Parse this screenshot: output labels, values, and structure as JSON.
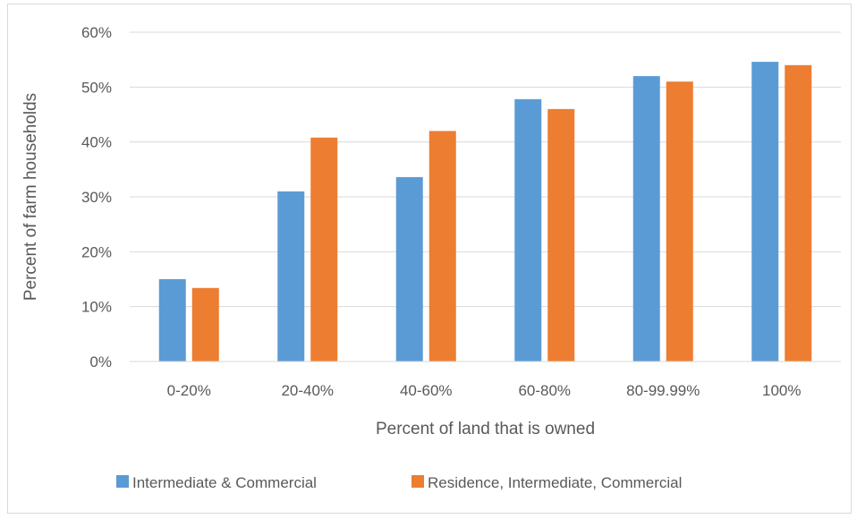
{
  "chart_data": {
    "type": "bar",
    "xlabel": "Percent of land that is owned",
    "ylabel": "Percent of farm households",
    "categories": [
      "0-20%",
      "20-40%",
      "40-60%",
      "60-80%",
      "80-99.99%",
      "100%"
    ],
    "series": [
      {
        "name": "Intermediate & Commercial",
        "color": "#5b9bd5",
        "values": [
          15.0,
          31.0,
          33.6,
          47.8,
          52.0,
          54.6
        ]
      },
      {
        "name": "Residence, Intermediate, Commercial",
        "color": "#ed7d31",
        "values": [
          13.4,
          40.8,
          42.0,
          46.0,
          51.0,
          54.0
        ]
      }
    ],
    "ylim": [
      0,
      60
    ],
    "yticks": [
      "0%",
      "10%",
      "20%",
      "30%",
      "40%",
      "50%",
      "60%"
    ],
    "grid": true,
    "legend": "bottom"
  }
}
